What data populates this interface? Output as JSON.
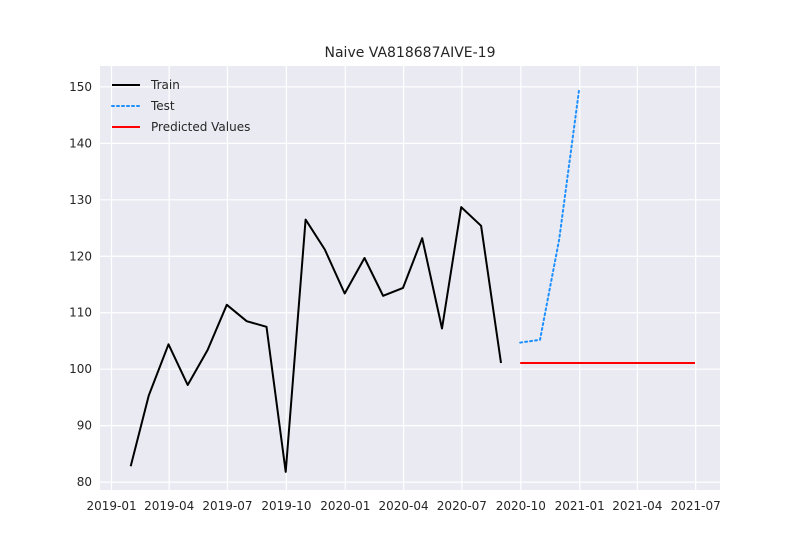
{
  "chart_data": {
    "type": "line",
    "title": "Naive VA818687AIVE-19",
    "xlabel": "",
    "ylabel": "",
    "xlim": [
      "2018-12-14",
      "2021-08-08"
    ],
    "ylim": [
      78.6,
      153.7
    ],
    "grid": true,
    "legend_placement": "top-left",
    "x_ticks": [
      "2019-01",
      "2019-04",
      "2019-07",
      "2019-10",
      "2020-01",
      "2020-04",
      "2020-07",
      "2020-10",
      "2021-01",
      "2021-04",
      "2021-07"
    ],
    "y_ticks": [
      80,
      90,
      100,
      110,
      120,
      130,
      140,
      150
    ],
    "series": [
      {
        "name": "Train",
        "color": "#000000",
        "style": "solid",
        "x": [
          "2019-01-31",
          "2019-02-28",
          "2019-03-31",
          "2019-04-30",
          "2019-05-31",
          "2019-06-30",
          "2019-07-31",
          "2019-08-31",
          "2019-09-30",
          "2019-10-31",
          "2019-11-30",
          "2019-12-31",
          "2020-01-31",
          "2020-02-29",
          "2020-03-31",
          "2020-04-30",
          "2020-05-31",
          "2020-06-30",
          "2020-07-31",
          "2020-08-31"
        ],
        "values": [
          82.8,
          95.3,
          104.4,
          97.2,
          103.4,
          111.4,
          108.5,
          107.5,
          81.8,
          126.5,
          121.2,
          113.4,
          119.7,
          113.0,
          114.4,
          123.2,
          107.2,
          128.7,
          125.4,
          101.1
        ]
      },
      {
        "name": "Test",
        "color": "#1e90ff",
        "style": "dotted",
        "x": [
          "2020-09-30",
          "2020-10-31",
          "2020-11-30",
          "2020-12-31"
        ],
        "values": [
          104.7,
          105.2,
          123.0,
          149.5
        ]
      },
      {
        "name": "Predicted Values",
        "color": "#ff0000",
        "style": "solid",
        "x": [
          "2020-09-30",
          "2021-06-30"
        ],
        "values": [
          101.1,
          101.1
        ]
      }
    ]
  }
}
